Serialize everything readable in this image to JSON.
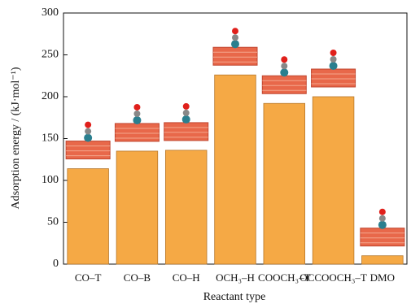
{
  "chart_data": {
    "type": "bar",
    "x_label": "Reactant type",
    "y_label": "Adsorption energy / (kJ·mol⁻¹)",
    "categories": [
      "CO–T",
      "CO–B",
      "CO–H",
      "OCH₃–H",
      "COOCH₃–T",
      "OCCOOCH₃–T",
      "DMO"
    ],
    "values": [
      114,
      135,
      136,
      226,
      192,
      200,
      10
    ],
    "color": "#f5a945",
    "ylim": [
      0,
      300
    ],
    "yticks": [
      0,
      50,
      100,
      150,
      200,
      250,
      300
    ]
  }
}
